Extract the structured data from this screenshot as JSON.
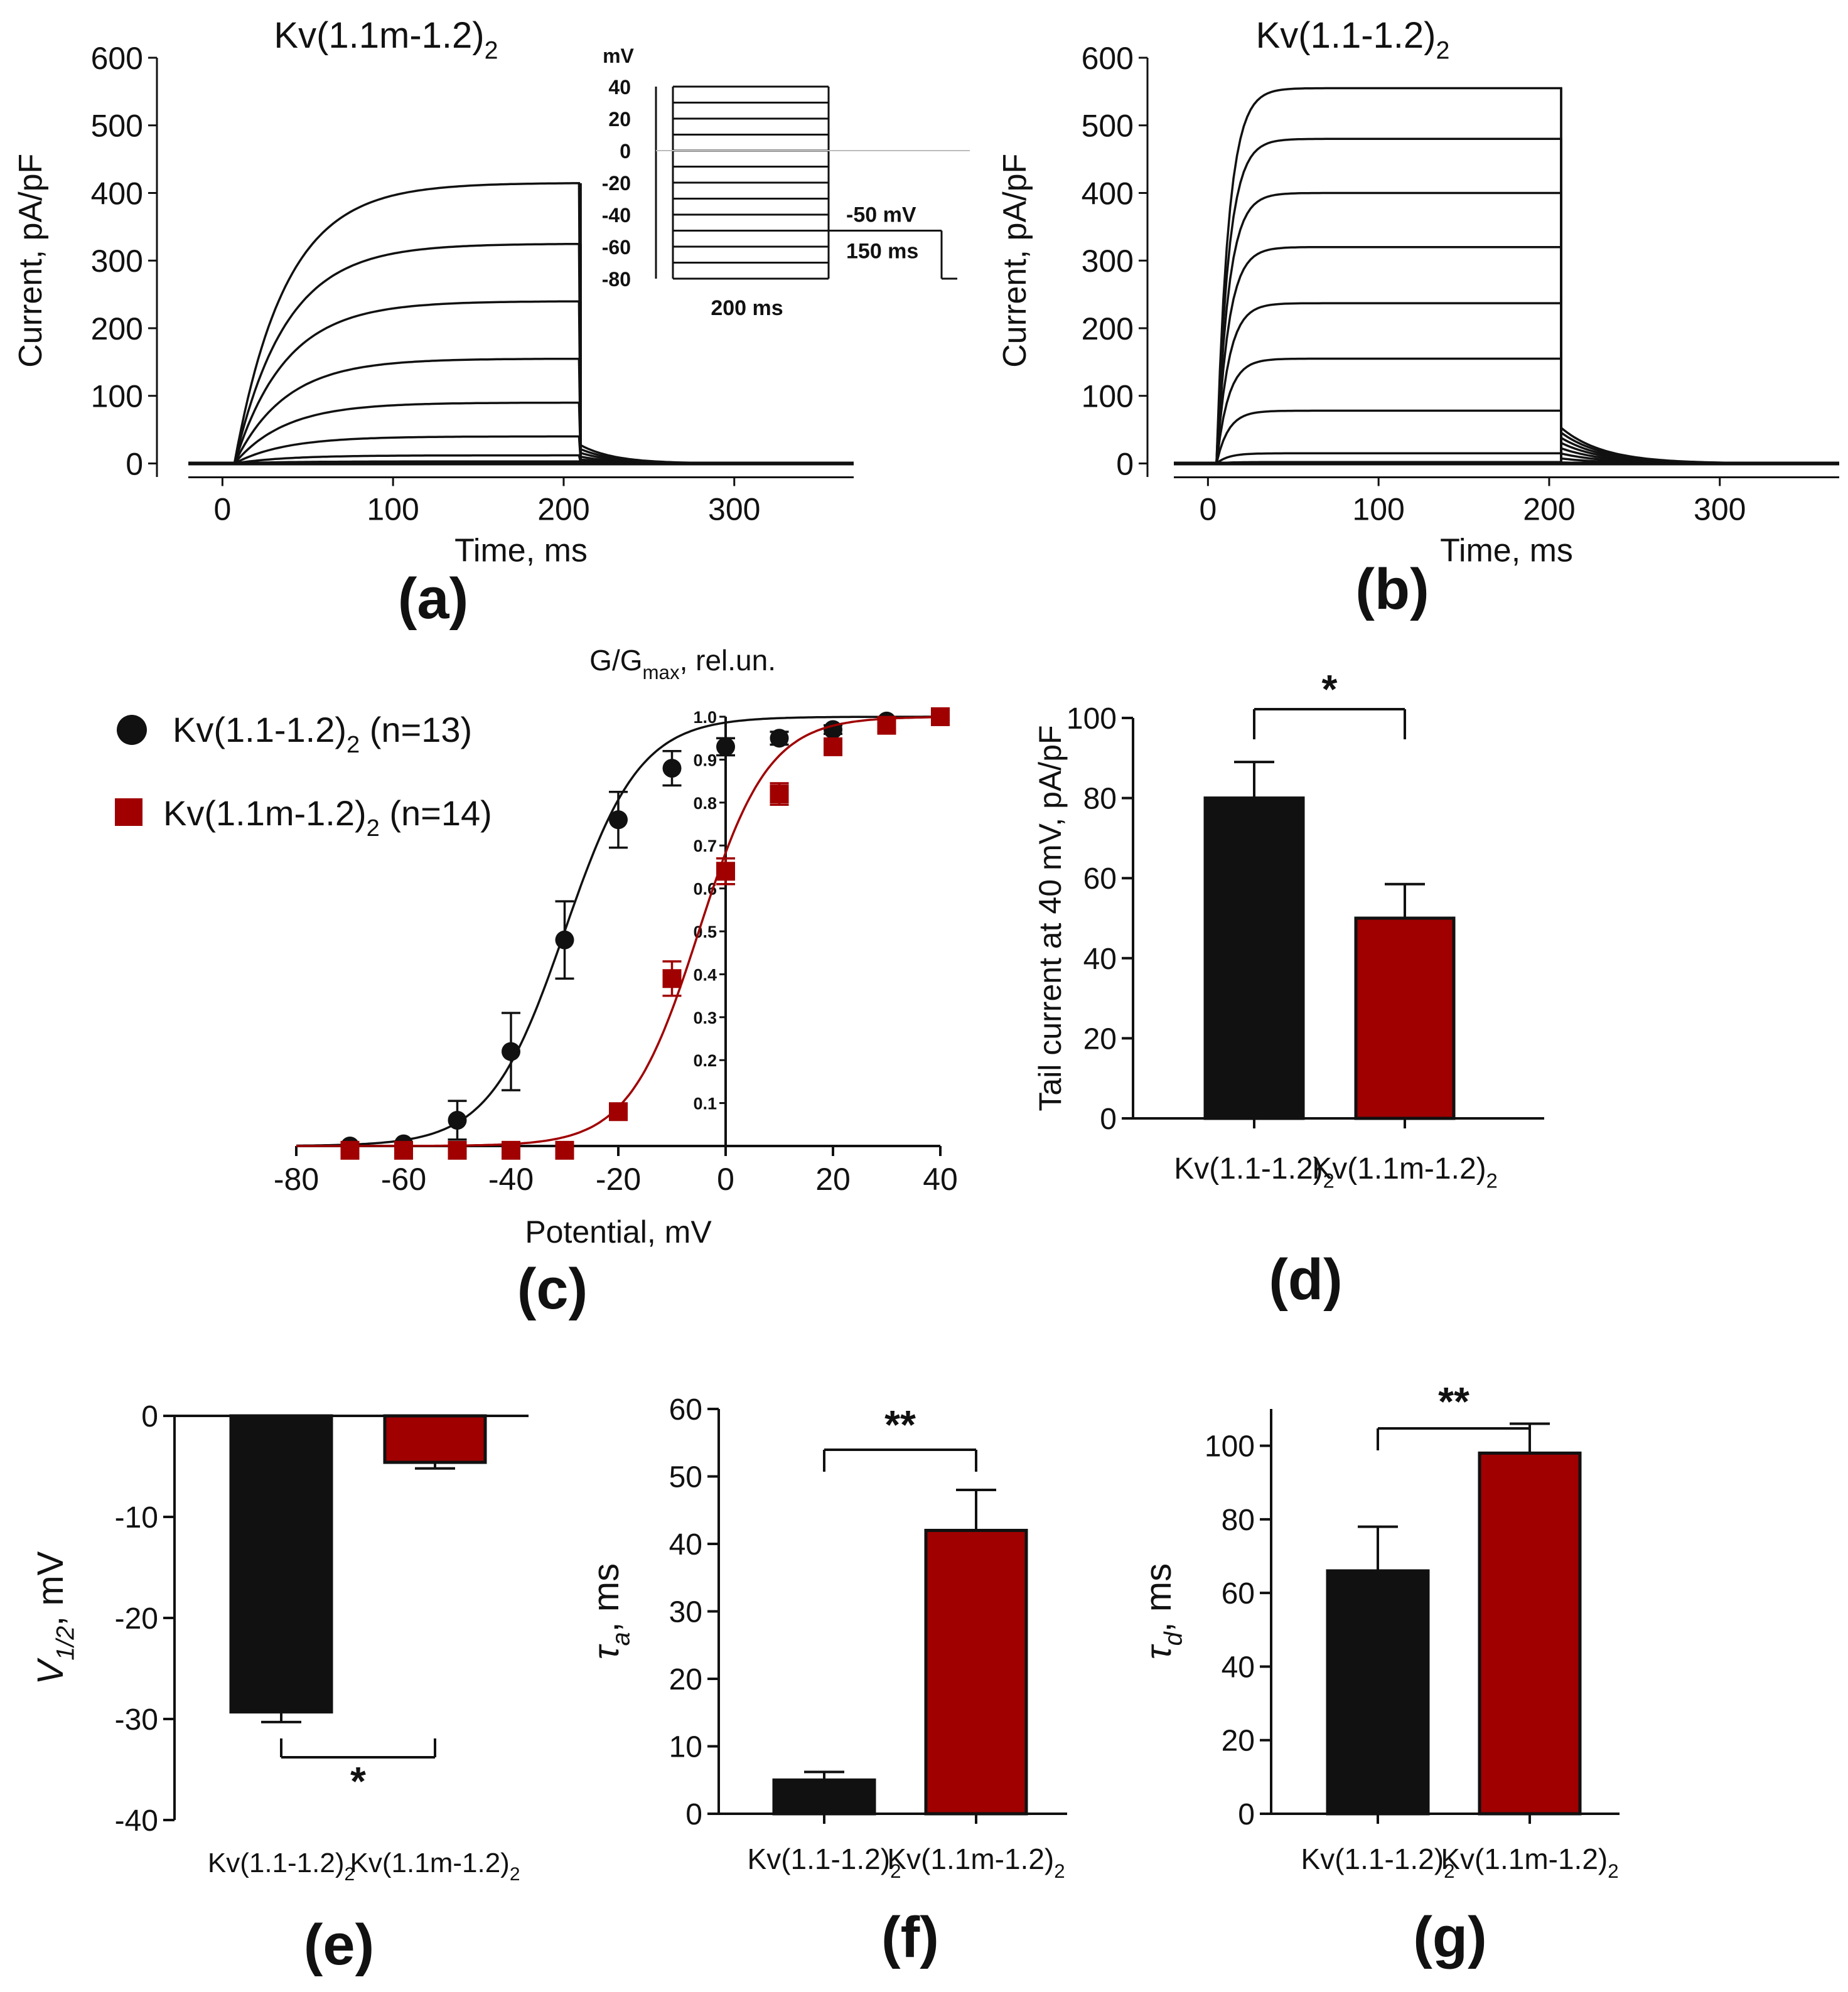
{
  "colors": {
    "ink": "#111111",
    "red": "#a00000",
    "grey": "#bbbbbb"
  },
  "chart_data": [
    {
      "id": "a",
      "type": "line",
      "panel_label": "(a)",
      "title_main": "Kv(1.1m-1.2)",
      "title_sub": "2",
      "xlabel": "Time, ms",
      "ylabel": "Current, pA/pF",
      "xlim": [
        -20,
        370
      ],
      "ylim": [
        -20,
        600
      ],
      "xticks": [
        0,
        100,
        200,
        300
      ],
      "yticks": [
        0,
        100,
        200,
        300,
        400,
        500,
        600
      ],
      "pulse_start": 7,
      "pulse_end": 210,
      "tail_end": 350,
      "tau_activation_ms": 30,
      "tau_deactivation_ms": 20,
      "tail_fraction": 0.065,
      "steady_currents": [
        0,
        0,
        3,
        12,
        40,
        90,
        155,
        240,
        325,
        415
      ],
      "inset": {
        "unit": "mV",
        "yticks": [
          40,
          20,
          0,
          -20,
          -40,
          -60,
          -80
        ],
        "step_levels": [
          40,
          30,
          20,
          10,
          0,
          -10,
          -20,
          -30,
          -40,
          -50,
          -60,
          -70,
          -80
        ],
        "tail_label": "-50 mV",
        "tail_duration": "150 ms",
        "step_duration": "200 ms"
      }
    },
    {
      "id": "b",
      "type": "line",
      "panel_label": "(b)",
      "title_main": "Kv(1.1-1.2)",
      "title_sub": "2",
      "xlabel": "Time, ms",
      "ylabel": "Current, pA/pF",
      "xlim": [
        -20,
        370
      ],
      "ylim": [
        -20,
        600
      ],
      "xticks": [
        0,
        100,
        200,
        300
      ],
      "yticks": [
        0,
        100,
        200,
        300,
        400,
        500,
        600
      ],
      "pulse_start": 5,
      "pulse_end": 207,
      "tail_end": 350,
      "tau_activation_ms": 7,
      "tau_deactivation_ms": 25,
      "tail_fraction": 0.095,
      "steady_currents": [
        0,
        2,
        15,
        78,
        155,
        237,
        320,
        400,
        480,
        555
      ]
    },
    {
      "id": "c",
      "type": "scatter",
      "panel_label": "(c)",
      "xlabel": "Potential, mV",
      "ylabel_main": "G/G",
      "ylabel_sub": "max",
      "ylabel_tail": ", rel.un.",
      "xlim": [
        -80,
        40
      ],
      "ylim": [
        0,
        1.0
      ],
      "xticks": [
        -80,
        -60,
        -40,
        -20,
        0,
        20,
        40
      ],
      "yticks": [
        0.1,
        0.2,
        0.3,
        0.4,
        0.5,
        0.6,
        0.7,
        0.8,
        0.9,
        1.0
      ],
      "ytick_labels": [
        "0.1",
        "0.2",
        "0.3",
        "0.4",
        "0.5",
        "0.6",
        "0.7",
        "0.8",
        "0.9",
        "1.0"
      ],
      "series": [
        {
          "name_main": "Kv(1.1-1.2)",
          "name_sub": "2",
          "n_text": "(n=13)",
          "marker": "circle",
          "color": "#111111",
          "x": [
            -70,
            -60,
            -50,
            -40,
            -30,
            -20,
            -10,
            0,
            10,
            20,
            30,
            40
          ],
          "y": [
            0.0,
            0.005,
            0.06,
            0.22,
            0.48,
            0.76,
            0.88,
            0.93,
            0.95,
            0.97,
            0.99,
            1.0
          ],
          "err": [
            0,
            0,
            0.045,
            0.09,
            0.09,
            0.065,
            0.04,
            0.02,
            0.015,
            0.01,
            0.005,
            0
          ],
          "fit_v_half": -30,
          "fit_k": 7
        },
        {
          "name_main": "Kv(1.1m-1.2)",
          "name_sub": "2",
          "n_text": "(n=14)",
          "marker": "square",
          "color": "#a00000",
          "x": [
            -70,
            -60,
            -50,
            -40,
            -30,
            -20,
            -10,
            0,
            10,
            20,
            30,
            40
          ],
          "y": [
            -0.01,
            -0.01,
            -0.01,
            -0.01,
            -0.01,
            0.08,
            0.39,
            0.64,
            0.82,
            0.93,
            0.98,
            1.0
          ],
          "err": [
            0,
            0,
            0,
            0,
            0,
            0.008,
            0.04,
            0.03,
            0.025,
            0.015,
            0.01,
            0
          ],
          "fit_v_half": -5,
          "fit_k": 6.5
        }
      ]
    },
    {
      "id": "d",
      "type": "bar",
      "panel_label": "(d)",
      "ylabel": "Tail current at 40 mV, pA/pF",
      "ylim": [
        0,
        100
      ],
      "yticks": [
        0,
        20,
        40,
        60,
        80,
        100
      ],
      "categories": [
        {
          "main": "Kv(1.1-1.2)",
          "sub": "2"
        },
        {
          "main": "Kv(1.1m-1.2)",
          "sub": "2"
        }
      ],
      "values": [
        80,
        50
      ],
      "errors": [
        9,
        8.5
      ],
      "bar_colors": [
        "#111111",
        "#a00000"
      ],
      "significance": "*"
    },
    {
      "id": "e",
      "type": "bar",
      "panel_label": "(e)",
      "ylabel_main": "V",
      "ylabel_sub": "1/2",
      "ylabel_tail": ", mV",
      "ylim": [
        -40,
        0
      ],
      "yticks": [
        0,
        -10,
        -20,
        -30,
        -40
      ],
      "categories": [
        {
          "main": "Kv(1.1-1.2)",
          "sub": "2"
        },
        {
          "main": "Kv(1.1m-1.2)",
          "sub": "2"
        }
      ],
      "values": [
        -29.3,
        -4.6
      ],
      "errors": [
        1.0,
        0.6
      ],
      "bar_colors": [
        "#111111",
        "#a00000"
      ],
      "significance": "*"
    },
    {
      "id": "f",
      "type": "bar",
      "panel_label": "(f)",
      "ylabel_main": "τ",
      "ylabel_sub": "a",
      "ylabel_tail": ", ms",
      "ylim": [
        0,
        60
      ],
      "yticks": [
        0,
        10,
        20,
        30,
        40,
        50,
        60
      ],
      "categories": [
        {
          "main": "Kv(1.1-1.2)",
          "sub": "2"
        },
        {
          "main": "Kv(1.1m-1.2)",
          "sub": "2"
        }
      ],
      "values": [
        5,
        42
      ],
      "errors": [
        1.2,
        6
      ],
      "bar_colors": [
        "#111111",
        "#a00000"
      ],
      "significance": "**"
    },
    {
      "id": "g",
      "type": "bar",
      "panel_label": "(g)",
      "ylabel_main": "τ",
      "ylabel_sub": "d",
      "ylabel_tail": ", ms",
      "ylim": [
        0,
        110
      ],
      "yticks": [
        0,
        20,
        40,
        60,
        80,
        100
      ],
      "categories": [
        {
          "main": "Kv(1.1-1.2)",
          "sub": "2"
        },
        {
          "main": "Kv(1.1m-1.2)",
          "sub": "2"
        }
      ],
      "values": [
        66,
        98
      ],
      "errors": [
        12,
        8
      ],
      "bar_colors": [
        "#111111",
        "#a00000"
      ],
      "significance": "**"
    }
  ]
}
